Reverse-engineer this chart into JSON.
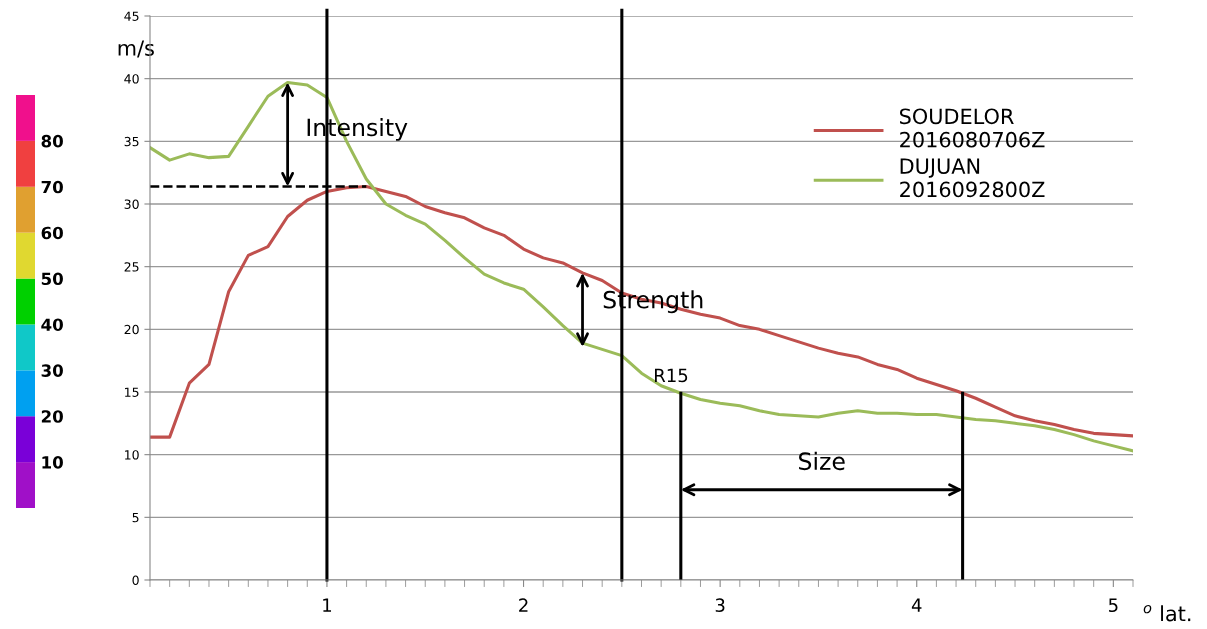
{
  "chart_data": [
    {
      "type": "line",
      "xlabel": "$^{o}$ lat.",
      "ylabel": "m/s",
      "x": [
        0.1,
        0.2,
        0.3,
        0.4,
        0.5,
        0.6,
        0.7,
        0.8,
        0.9,
        1.0,
        1.1,
        1.2,
        1.3,
        1.4,
        1.5,
        1.6,
        1.7,
        1.8,
        1.9,
        2.0,
        2.1,
        2.2,
        2.3,
        2.4,
        2.5,
        2.6,
        2.7,
        2.8,
        2.9,
        3.0,
        3.1,
        3.2,
        3.3,
        3.4,
        3.5,
        3.6,
        3.7,
        3.8,
        3.9,
        4.0,
        4.1,
        4.2,
        4.3,
        4.4,
        4.5,
        4.6,
        4.7,
        4.8,
        4.9,
        5.0,
        5.1
      ],
      "series": [
        {
          "name": "SOUDELOR\n2016080706Z",
          "color": "#c0504d",
          "values": [
            11.4,
            11.4,
            15.7,
            17.2,
            23.0,
            25.9,
            26.6,
            29.0,
            30.3,
            31.0,
            31.3,
            31.4,
            31.0,
            30.6,
            29.8,
            29.3,
            28.9,
            28.1,
            27.5,
            26.4,
            25.7,
            25.3,
            24.5,
            23.9,
            22.9,
            22.4,
            22.1,
            21.6,
            21.2,
            20.9,
            20.3,
            20.0,
            19.5,
            19.0,
            18.5,
            18.1,
            17.8,
            17.2,
            16.8,
            16.1,
            15.6,
            15.1,
            14.5,
            13.8,
            13.1,
            12.7,
            12.4,
            12.0,
            11.7,
            11.6,
            11.5
          ]
        },
        {
          "name": "DUJUAN\n2016092800Z",
          "color": "#9bbb59",
          "values": [
            34.5,
            33.5,
            34.0,
            33.7,
            33.8,
            36.2,
            38.6,
            39.7,
            39.5,
            38.5,
            35.0,
            32.0,
            30.0,
            29.1,
            28.4,
            27.1,
            25.7,
            24.4,
            23.7,
            23.2,
            21.8,
            20.3,
            18.9,
            18.4,
            17.9,
            16.5,
            15.5,
            14.9,
            14.4,
            14.1,
            13.9,
            13.5,
            13.2,
            13.1,
            13.0,
            13.3,
            13.5,
            13.3,
            13.3,
            13.2,
            13.2,
            13.0,
            12.8,
            12.7,
            12.5,
            12.3,
            12.0,
            11.6,
            11.1,
            10.7,
            10.3
          ]
        }
      ],
      "xlim": [
        0.1,
        5.1
      ],
      "xticks": [
        1,
        2,
        3,
        4,
        5
      ],
      "ylim": [
        0,
        45
      ],
      "yticks": [
        0,
        5,
        10,
        15,
        20,
        25,
        30,
        35,
        40,
        45
      ],
      "grid": "y",
      "legend": "top right",
      "marker": "none",
      "line_style": "solid",
      "ref_lines": [
        {
          "axis": "x",
          "value": 1.0,
          "color": "#000000"
        },
        {
          "axis": "x",
          "value": 2.5,
          "color": "#000000"
        }
      ],
      "annotations": [
        {
          "text": "Intensity",
          "x": 0.8,
          "y": 39.7
        },
        {
          "text": "Strength",
          "x": 2.3,
          "y": 24.5
        },
        {
          "text": "R15",
          "x": 2.8,
          "y": 14.9
        },
        "Size"
      ]
    },
    {
      "type": "bar",
      "stacked": true,
      "categories": [
        null
      ],
      "ylim": [
        0,
        90
      ],
      "yticks": [
        10,
        20,
        30,
        40,
        50,
        60,
        70,
        80
      ],
      "tick_labels": "y",
      "series": [
        {
          "color": "#a010c8",
          "values": [
            10
          ]
        },
        {
          "color": "#7a00d8",
          "values": [
            10
          ]
        },
        {
          "color": "#00a0f0",
          "values": [
            10
          ]
        },
        {
          "color": "#10c8c8",
          "values": [
            10
          ]
        },
        {
          "color": "#00d000",
          "values": [
            10
          ]
        },
        {
          "color": "#e0d830",
          "values": [
            10
          ]
        },
        {
          "color": "#e0a030",
          "values": [
            10
          ]
        },
        {
          "color": "#f04040",
          "values": [
            10
          ]
        },
        {
          "color": "#f0108c",
          "values": [
            10
          ]
        }
      ]
    }
  ]
}
